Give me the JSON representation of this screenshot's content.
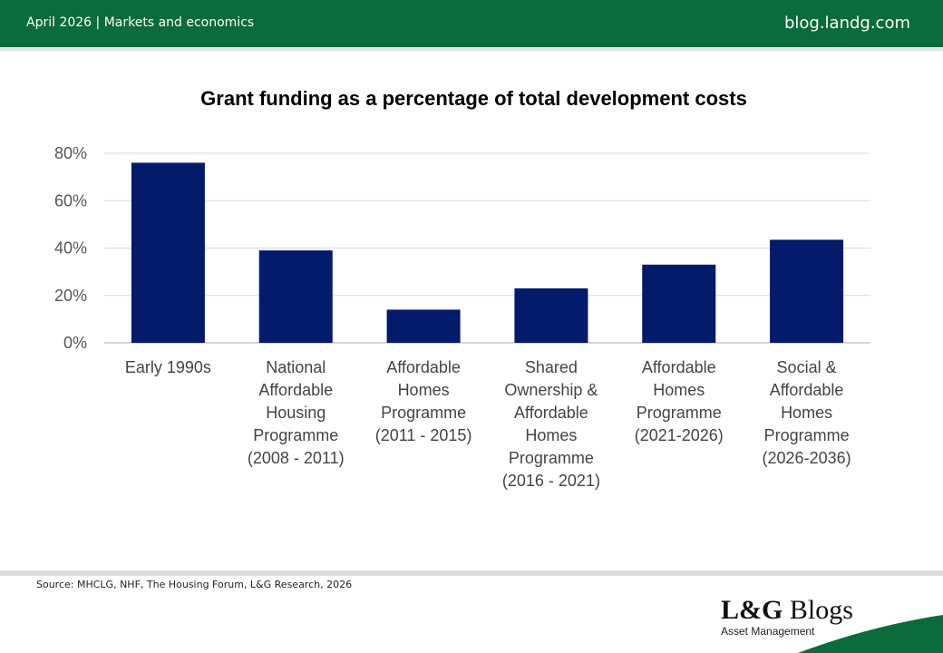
{
  "header": {
    "left_text": "April 2026 | Markets and economics",
    "right_text": "blog.landg.com",
    "color": "#0b6b3a"
  },
  "chart_data": {
    "type": "bar",
    "title": "Grant funding as a percentage of total development costs",
    "categories": [
      [
        "Early 1990s"
      ],
      [
        "National",
        "Affordable",
        "Housing",
        "Programme",
        "(2008 - 2011)"
      ],
      [
        "Affordable",
        "Homes",
        "Programme",
        "(2011 - 2015)"
      ],
      [
        "Shared",
        "Ownership &",
        "Affordable",
        "Homes",
        "Programme",
        "(2016 - 2021)"
      ],
      [
        "Affordable",
        "Homes",
        "Programme",
        "(2021-2026)"
      ],
      [
        "Social &",
        "Affordable",
        "Homes",
        "Programme",
        "(2026-2036)"
      ]
    ],
    "values": [
      76,
      39,
      14,
      23,
      33,
      43.5
    ],
    "ylim": [
      0,
      80
    ],
    "yticks": [
      0,
      20,
      40,
      60,
      80
    ],
    "ytick_labels": [
      "0%",
      "20%",
      "40%",
      "60%",
      "80%"
    ],
    "xlabel": "",
    "ylabel": "",
    "grid": true,
    "bar_color": "#041a6a"
  },
  "footer": {
    "source": "Source: MHCLG, NHF, The Housing Forum, L&G Research, 2026",
    "logo_main_bold": "L&G",
    "logo_main_rest": " Blogs",
    "logo_sub": "Asset Management",
    "swoosh_color": "#0b6b3a"
  }
}
